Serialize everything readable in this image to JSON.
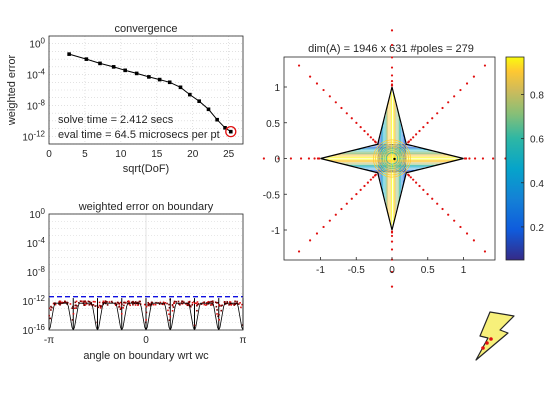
{
  "colors": {
    "axis": "#262626",
    "grid": "#d0d0d0",
    "series": "#000000",
    "poles": "#e01010",
    "dashed": "#1010e0",
    "circle": "#e01010",
    "boundary": "#000000"
  },
  "chart_data": [
    {
      "type": "line",
      "title": "convergence",
      "xlabel": "sqrt(DoF)",
      "ylabel": "weighted error",
      "xlim": [
        0,
        27
      ],
      "ylim_log10": [
        -13,
        1
      ],
      "xticks": [
        "0",
        "5",
        "10",
        "15",
        "20",
        "25"
      ],
      "yticks": [
        "10^0",
        "10^-4",
        "10^-8",
        "10^-12"
      ],
      "x": [
        2.8,
        5.2,
        7.1,
        9.0,
        10.6,
        12.2,
        13.9,
        15.4,
        16.8,
        18.3,
        19.6,
        20.9,
        22.2,
        23.4,
        24.5,
        25.3
      ],
      "y_log10": [
        -1.35,
        -2.0,
        -2.55,
        -3.0,
        -3.45,
        -3.85,
        -4.3,
        -4.65,
        -5.0,
        -5.65,
        -6.6,
        -7.45,
        -8.5,
        -9.85,
        -10.9,
        -11.4
      ],
      "highlight_point": {
        "x": 25.3,
        "y_log10": -11.4
      },
      "annotations": [
        "solve time =  2.412 secs",
        "eval time = 64.5 microsecs per pt"
      ]
    },
    {
      "type": "scatter",
      "title": "weighted error on boundary",
      "xlabel": "angle on boundary wrt wc",
      "xticks": [
        "-π",
        "0",
        "π"
      ],
      "xlim": [
        -3.14159,
        3.14159
      ],
      "ylim_log10": [
        -16,
        0
      ],
      "yticks": [
        "10^0",
        "10^-4",
        "10^-8",
        "10^-12",
        "10^-16"
      ],
      "dashed_line_log10": -11.4,
      "n_lobes": 8,
      "lobe_top_log10": -11.7,
      "lobe_bottom_log10": -16
    },
    {
      "type": "contour",
      "title": "dim(A) = 1946 x 631  #poles = 279",
      "xlim": [
        -1.4,
        1.4
      ],
      "ylim": [
        -1.4,
        1.4
      ],
      "xticks": [
        "-1",
        "-0.5",
        "0",
        "0.5",
        "1"
      ],
      "yticks": [
        "1",
        "0.5",
        "0",
        "-0.5",
        "-1"
      ],
      "domain": "4-point star, tips at (±1,0),(0,±1), inner vertices at (±0.2,±0.2)",
      "colorbar_ticks": [
        "0.8",
        "0.6",
        "0.4",
        "0.2"
      ],
      "colorbar_range": [
        0.05,
        0.97
      ]
    }
  ]
}
